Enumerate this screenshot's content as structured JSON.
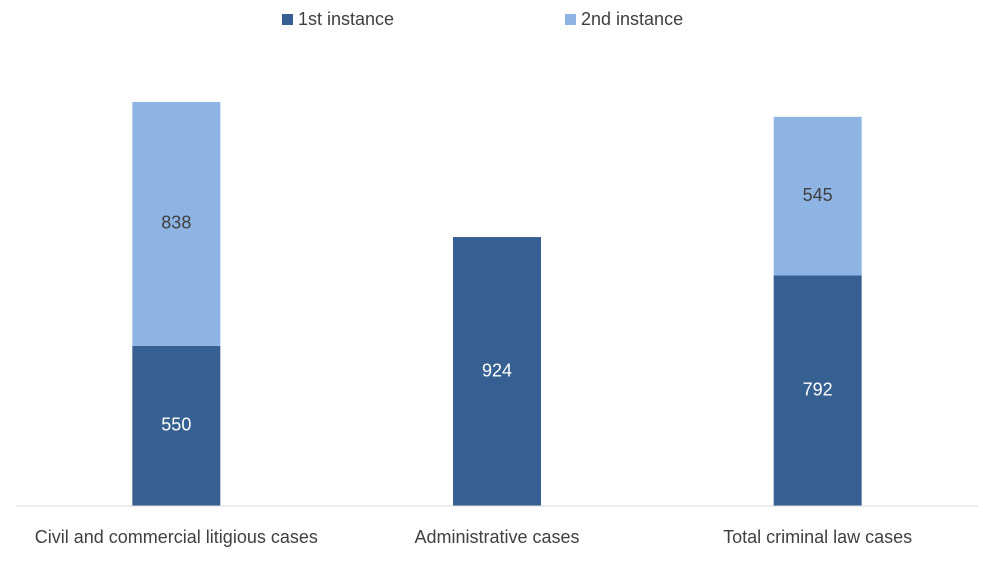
{
  "chart_data": {
    "type": "stacked_bar",
    "categories": [
      "Civil and commercial litigious cases",
      "Administrative cases",
      "Total criminal law cases"
    ],
    "series": [
      {
        "name": "1st instance",
        "color": "#376092",
        "values": [
          550,
          924,
          792
        ]
      },
      {
        "name": "2nd instance",
        "color": "#8eb4e3",
        "values": [
          838,
          null,
          545
        ]
      }
    ],
    "legend": "top"
  }
}
